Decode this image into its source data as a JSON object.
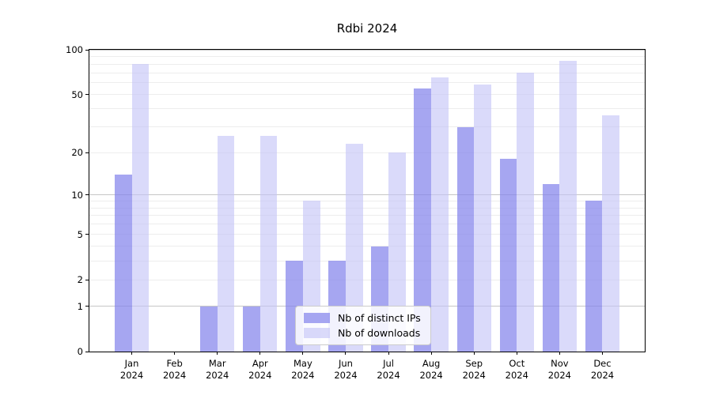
{
  "chart_data": {
    "type": "bar",
    "title": "Rdbi 2024",
    "yscale": "log1p",
    "ylim": [
      0,
      100
    ],
    "grid": true,
    "legend_position": "lower center",
    "categories": [
      {
        "month": "Jan",
        "year": "2024"
      },
      {
        "month": "Feb",
        "year": "2024"
      },
      {
        "month": "Mar",
        "year": "2024"
      },
      {
        "month": "Apr",
        "year": "2024"
      },
      {
        "month": "May",
        "year": "2024"
      },
      {
        "month": "Jun",
        "year": "2024"
      },
      {
        "month": "Jul",
        "year": "2024"
      },
      {
        "month": "Aug",
        "year": "2024"
      },
      {
        "month": "Sep",
        "year": "2024"
      },
      {
        "month": "Oct",
        "year": "2024"
      },
      {
        "month": "Nov",
        "year": "2024"
      },
      {
        "month": "Dec",
        "year": "2024"
      }
    ],
    "series": [
      {
        "name": "Nb of distinct IPs",
        "color": "#8484eb",
        "opacity": 0.72,
        "values": [
          14,
          0,
          1,
          1,
          3,
          3,
          4,
          55,
          30,
          18,
          12,
          9
        ]
      },
      {
        "name": "Nb of downloads",
        "color": "#c4c4f7",
        "opacity": 0.62,
        "values": [
          80,
          0,
          26,
          26,
          9,
          23,
          20,
          65,
          58,
          70,
          84,
          36
        ]
      }
    ],
    "y_ticks": [
      {
        "value": 100,
        "label": "100"
      },
      {
        "value": 50,
        "label": "50"
      },
      {
        "value": 20,
        "label": "20"
      },
      {
        "value": 10,
        "label": "10"
      },
      {
        "value": 5,
        "label": "5"
      },
      {
        "value": 2,
        "label": "2"
      },
      {
        "value": 1,
        "label": "1"
      },
      {
        "value": 0,
        "label": "0"
      }
    ],
    "major_gridlines": [
      1,
      10,
      100
    ],
    "minor_gridlines": [
      2,
      3,
      4,
      5,
      6,
      7,
      8,
      9,
      20,
      30,
      40,
      50,
      60,
      70,
      80,
      90
    ],
    "colors": {
      "major_grid": "#c6c6c6",
      "minor_grid": "#ededed",
      "spine": "#000000",
      "background": "#ffffff"
    }
  }
}
